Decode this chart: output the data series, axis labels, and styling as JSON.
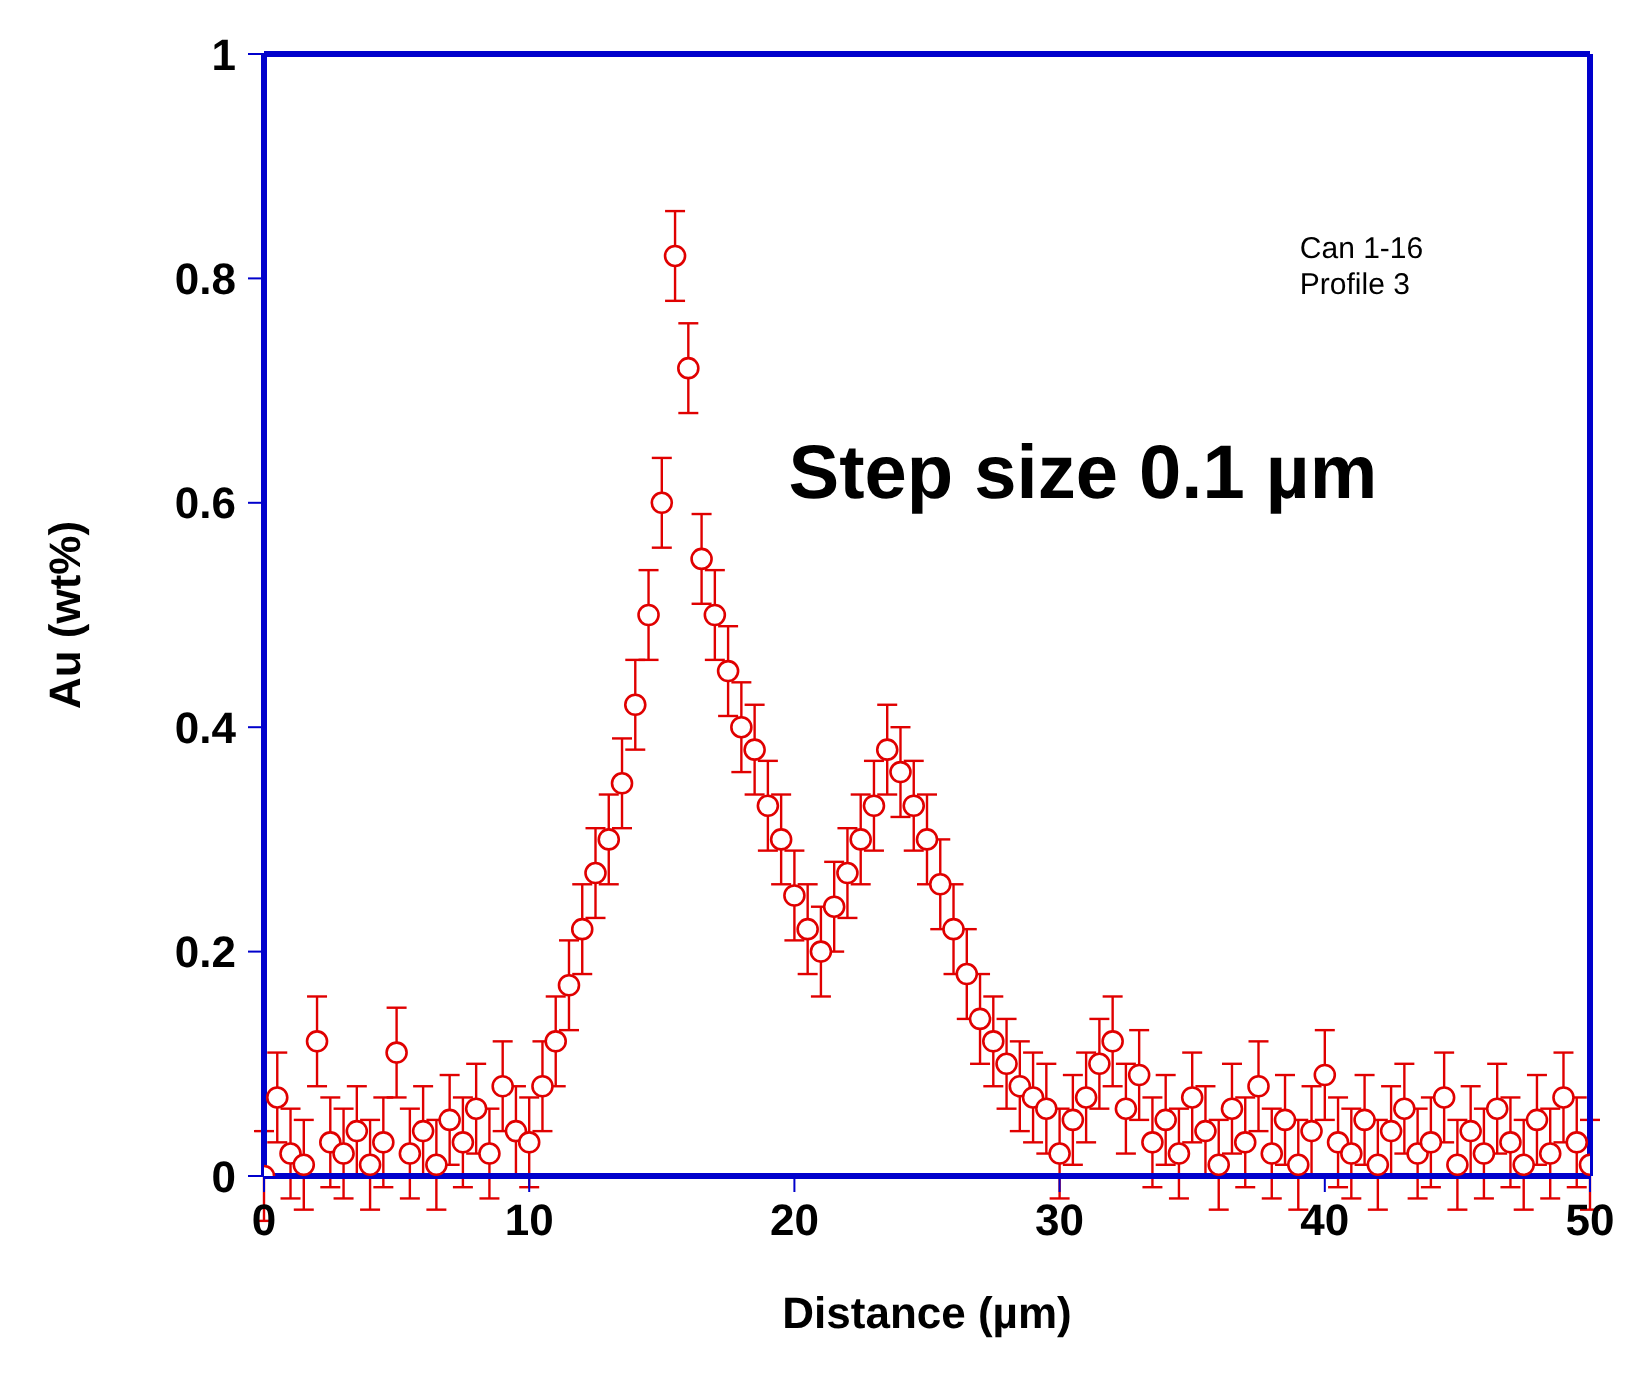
{
  "chart_data": {
    "type": "scatter",
    "xlabel": "Distance (µm)",
    "ylabel": "Au (wt%)",
    "annotations": [
      "Can 1-16",
      "Profile 3",
      "Step size 0.1 µm"
    ],
    "xlim": [
      0,
      50
    ],
    "xticks": [
      0,
      10,
      20,
      30,
      40,
      50
    ],
    "ylim": [
      0,
      1
    ],
    "yticks": [
      0,
      0.2,
      0.4,
      0.6,
      0.8,
      1
    ],
    "marker": "circle",
    "series": [
      {
        "color": "#e00000",
        "x": [
          0,
          0.5,
          1,
          1.5,
          2,
          2.5,
          3,
          3.5,
          4,
          4.5,
          5,
          5.5,
          6,
          6.5,
          7,
          7.5,
          8,
          8.5,
          9,
          9.5,
          10,
          10.5,
          11,
          11.5,
          12,
          12.5,
          13,
          13.5,
          14,
          14.5,
          15,
          15.5,
          16,
          16.5,
          17,
          17.5,
          18,
          18.5,
          19,
          19.5,
          20,
          20.5,
          21,
          21.5,
          22,
          22.5,
          23,
          23.5,
          24,
          24.5,
          25,
          25.5,
          26,
          26.5,
          27,
          27.5,
          28,
          28.5,
          29,
          29.5,
          30,
          30.5,
          31,
          31.5,
          32,
          32.5,
          33,
          33.5,
          34,
          34.5,
          35,
          35.5,
          36,
          36.5,
          37,
          37.5,
          38,
          38.5,
          39,
          39.5,
          40,
          40.5,
          41,
          41.5,
          42,
          42.5,
          43,
          43.5,
          44,
          44.5,
          45,
          45.5,
          46,
          46.5,
          47,
          47.5,
          48,
          48.5,
          49,
          49.5,
          50
        ],
        "values": [
          0.0,
          0.07,
          0.02,
          0.01,
          0.12,
          0.03,
          0.02,
          0.04,
          0.01,
          0.03,
          0.11,
          0.02,
          0.04,
          0.01,
          0.05,
          0.03,
          0.06,
          0.02,
          0.08,
          0.04,
          0.03,
          0.08,
          0.12,
          0.17,
          0.22,
          0.27,
          0.3,
          0.35,
          0.42,
          0.5,
          0.6,
          0.82,
          0.72,
          0.55,
          0.5,
          0.45,
          0.4,
          0.38,
          0.33,
          0.3,
          0.25,
          0.22,
          0.2,
          0.24,
          0.27,
          0.3,
          0.33,
          0.38,
          0.36,
          0.33,
          0.3,
          0.26,
          0.22,
          0.18,
          0.14,
          0.12,
          0.1,
          0.08,
          0.07,
          0.06,
          0.02,
          0.05,
          0.07,
          0.1,
          0.12,
          0.06,
          0.09,
          0.03,
          0.05,
          0.02,
          0.07,
          0.04,
          0.01,
          0.06,
          0.03,
          0.08,
          0.02,
          0.05,
          0.01,
          0.04,
          0.09,
          0.03,
          0.02,
          0.05,
          0.01,
          0.04,
          0.06,
          0.02,
          0.03,
          0.07,
          0.01,
          0.04,
          0.02,
          0.06,
          0.03,
          0.01,
          0.05,
          0.02,
          0.07,
          0.03,
          0.01
        ],
        "errors": [
          0.04,
          0.04,
          0.04,
          0.04,
          0.04,
          0.04,
          0.04,
          0.04,
          0.04,
          0.04,
          0.04,
          0.04,
          0.04,
          0.04,
          0.04,
          0.04,
          0.04,
          0.04,
          0.04,
          0.04,
          0.04,
          0.04,
          0.04,
          0.04,
          0.04,
          0.04,
          0.04,
          0.04,
          0.04,
          0.04,
          0.04,
          0.04,
          0.04,
          0.04,
          0.04,
          0.04,
          0.04,
          0.04,
          0.04,
          0.04,
          0.04,
          0.04,
          0.04,
          0.04,
          0.04,
          0.04,
          0.04,
          0.04,
          0.04,
          0.04,
          0.04,
          0.04,
          0.04,
          0.04,
          0.04,
          0.04,
          0.04,
          0.04,
          0.04,
          0.04,
          0.04,
          0.04,
          0.04,
          0.04,
          0.04,
          0.04,
          0.04,
          0.04,
          0.04,
          0.04,
          0.04,
          0.04,
          0.04,
          0.04,
          0.04,
          0.04,
          0.04,
          0.04,
          0.04,
          0.04,
          0.04,
          0.04,
          0.04,
          0.04,
          0.04,
          0.04,
          0.04,
          0.04,
          0.04,
          0.04,
          0.04,
          0.04,
          0.04,
          0.04,
          0.04,
          0.04,
          0.04,
          0.04,
          0.04,
          0.04,
          0.04
        ]
      }
    ]
  }
}
